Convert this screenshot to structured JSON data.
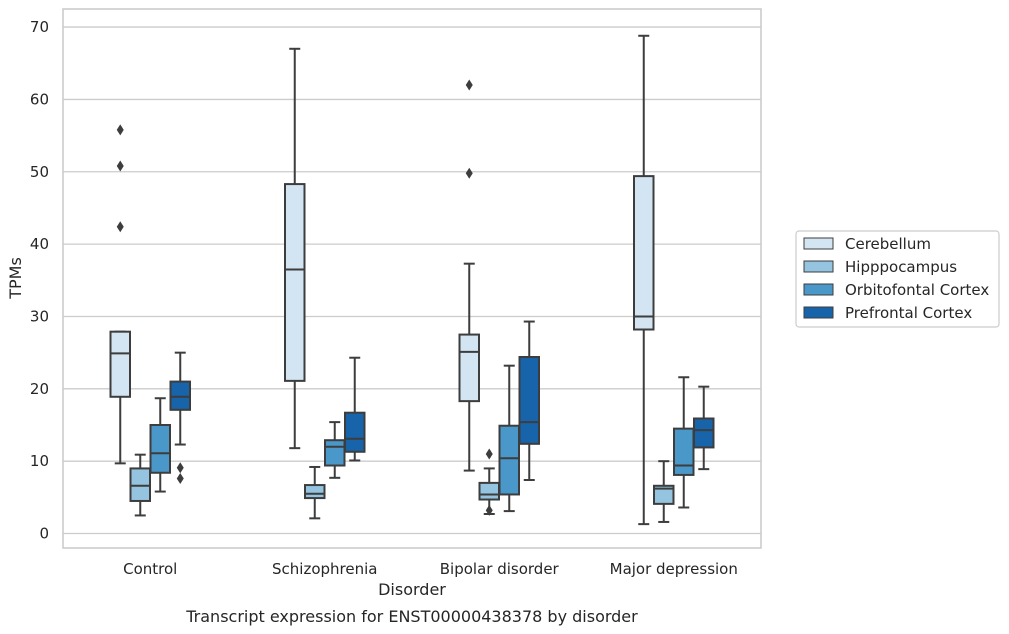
{
  "caption": "Transcript expression for ENST00000438378 by disorder",
  "chart_data": {
    "type": "box",
    "xlabel": "Disorder",
    "ylabel": "TPMs",
    "ylim": [
      -2,
      72.5
    ],
    "yticks": [
      0,
      10,
      20,
      30,
      40,
      50,
      60,
      70
    ],
    "grid": true,
    "legend_position": "right",
    "categories": [
      "Control",
      "Schizophrenia",
      "Bipolar disorder",
      "Major depression"
    ],
    "series": [
      {
        "name": "Cerebellum",
        "color": "#d3e4f3",
        "boxes": [
          {
            "min": 9.7,
            "q1": 18.9,
            "median": 24.9,
            "q3": 27.9,
            "max": 27.9,
            "outliers": [
              42.4,
              50.8,
              55.8
            ]
          },
          {
            "min": 11.8,
            "q1": 21.1,
            "median": 36.5,
            "q3": 48.3,
            "max": 67.0,
            "outliers": []
          },
          {
            "min": 8.7,
            "q1": 18.3,
            "median": 25.1,
            "q3": 27.5,
            "max": 37.3,
            "outliers": [
              49.8,
              62.0
            ]
          },
          {
            "min": 1.3,
            "q1": 28.2,
            "median": 30.0,
            "q3": 49.4,
            "max": 68.8,
            "outliers": []
          }
        ]
      },
      {
        "name": "Hipppocampus",
        "color": "#94c4df",
        "boxes": [
          {
            "min": 2.5,
            "q1": 4.5,
            "median": 6.6,
            "q3": 9.0,
            "max": 10.9,
            "outliers": []
          },
          {
            "min": 2.1,
            "q1": 4.9,
            "median": 5.5,
            "q3": 6.7,
            "max": 9.2,
            "outliers": []
          },
          {
            "min": 2.7,
            "q1": 4.7,
            "median": 5.4,
            "q3": 7.0,
            "max": 9.0,
            "outliers": [
              3.2,
              11.0
            ]
          },
          {
            "min": 1.6,
            "q1": 4.1,
            "median": 6.2,
            "q3": 6.6,
            "max": 10.0,
            "outliers": []
          }
        ]
      },
      {
        "name": "Orbitofontal Cortex",
        "color": "#4a98c9",
        "boxes": [
          {
            "min": 5.8,
            "q1": 8.4,
            "median": 11.1,
            "q3": 15.0,
            "max": 18.7,
            "outliers": []
          },
          {
            "min": 7.7,
            "q1": 9.4,
            "median": 12.0,
            "q3": 12.9,
            "max": 15.4,
            "outliers": []
          },
          {
            "min": 3.1,
            "q1": 5.4,
            "median": 10.4,
            "q3": 14.9,
            "max": 23.2,
            "outliers": []
          },
          {
            "min": 3.6,
            "q1": 8.1,
            "median": 9.4,
            "q3": 14.5,
            "max": 21.6,
            "outliers": []
          }
        ]
      },
      {
        "name": "Prefrontal Cortex",
        "color": "#1764ab",
        "boxes": [
          {
            "min": 12.3,
            "q1": 17.1,
            "median": 18.9,
            "q3": 21.0,
            "max": 25.0,
            "outliers": [
              7.6,
              9.1
            ]
          },
          {
            "min": 10.1,
            "q1": 11.3,
            "median": 13.1,
            "q3": 16.7,
            "max": 24.3,
            "outliers": []
          },
          {
            "min": 7.4,
            "q1": 12.4,
            "median": 15.4,
            "q3": 24.4,
            "max": 29.3,
            "outliers": []
          },
          {
            "min": 8.9,
            "q1": 11.9,
            "median": 14.3,
            "q3": 15.9,
            "max": 20.3,
            "outliers": []
          }
        ]
      }
    ]
  }
}
